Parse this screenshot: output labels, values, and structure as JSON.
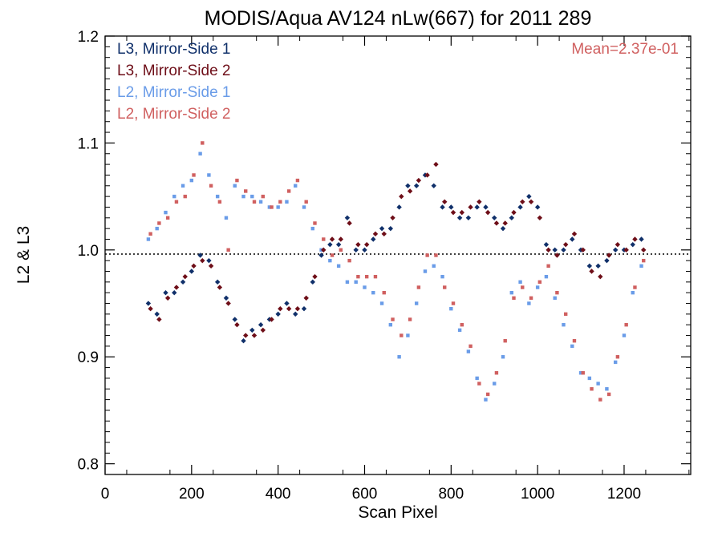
{
  "chart_data": {
    "type": "scatter",
    "title": "MODIS/Aqua AV124 nLw(667) for 2011 289",
    "xlabel": "Scan Pixel",
    "ylabel": "L2 & L3",
    "xlim": [
      0,
      1354
    ],
    "ylim": [
      0.79,
      1.2
    ],
    "x_ticks": [
      0,
      200,
      400,
      600,
      800,
      1000,
      1200
    ],
    "x_tick_labels": [
      "0",
      "200",
      "400",
      "600",
      "800",
      "1000",
      "1200"
    ],
    "y_ticks": [
      0.8,
      0.9,
      1.0,
      1.1,
      1.2
    ],
    "y_tick_labels": [
      "0.8",
      "0.9",
      "1.0",
      "1.1",
      "1.2"
    ],
    "reference_line": 1.0,
    "annotation": {
      "text": "Mean=2.37e-01",
      "color": "#d06060",
      "placement": "top-right"
    },
    "legend_placement": "top-left",
    "series": [
      {
        "name": "L3, Mirror-Side 1",
        "color": "#10306a",
        "marker": "diamond",
        "points": [
          [
            100,
            0.95
          ],
          [
            120,
            0.94
          ],
          [
            140,
            0.96
          ],
          [
            160,
            0.96
          ],
          [
            180,
            0.97
          ],
          [
            200,
            0.98
          ],
          [
            220,
            0.995
          ],
          [
            240,
            0.99
          ],
          [
            260,
            0.97
          ],
          [
            280,
            0.955
          ],
          [
            300,
            0.935
          ],
          [
            320,
            0.915
          ],
          [
            340,
            0.925
          ],
          [
            360,
            0.93
          ],
          [
            380,
            0.935
          ],
          [
            400,
            0.94
          ],
          [
            420,
            0.95
          ],
          [
            440,
            0.94
          ],
          [
            460,
            0.945
          ],
          [
            480,
            0.97
          ],
          [
            500,
            0.995
          ],
          [
            520,
            1.005
          ],
          [
            540,
            1.005
          ],
          [
            560,
            1.03
          ],
          [
            580,
            1.0
          ],
          [
            600,
            1.0
          ],
          [
            620,
            1.01
          ],
          [
            640,
            1.02
          ],
          [
            660,
            1.02
          ],
          [
            680,
            1.04
          ],
          [
            700,
            1.06
          ],
          [
            720,
            1.06
          ],
          [
            740,
            1.07
          ],
          [
            760,
            1.06
          ],
          [
            780,
            1.04
          ],
          [
            800,
            1.04
          ],
          [
            820,
            1.03
          ],
          [
            840,
            1.03
          ],
          [
            860,
            1.04
          ],
          [
            880,
            1.04
          ],
          [
            900,
            1.03
          ],
          [
            920,
            1.02
          ],
          [
            940,
            1.03
          ],
          [
            960,
            1.04
          ],
          [
            980,
            1.05
          ],
          [
            1000,
            1.04
          ],
          [
            1020,
            1.005
          ],
          [
            1040,
            1.0
          ],
          [
            1060,
            1.0
          ],
          [
            1080,
            1.01
          ],
          [
            1100,
            1.0
          ],
          [
            1120,
            0.985
          ],
          [
            1140,
            0.985
          ],
          [
            1160,
            0.99
          ],
          [
            1180,
            1.0
          ],
          [
            1200,
            1.0
          ],
          [
            1220,
            1.005
          ],
          [
            1240,
            1.01
          ]
        ]
      },
      {
        "name": "L3, Mirror-Side 2",
        "color": "#6e0e18",
        "marker": "diamond",
        "points": [
          [
            105,
            0.945
          ],
          [
            125,
            0.935
          ],
          [
            145,
            0.955
          ],
          [
            165,
            0.965
          ],
          [
            185,
            0.975
          ],
          [
            205,
            0.985
          ],
          [
            225,
            0.99
          ],
          [
            245,
            0.985
          ],
          [
            265,
            0.965
          ],
          [
            285,
            0.95
          ],
          [
            305,
            0.93
          ],
          [
            325,
            0.92
          ],
          [
            345,
            0.92
          ],
          [
            365,
            0.925
          ],
          [
            385,
            0.935
          ],
          [
            405,
            0.945
          ],
          [
            425,
            0.945
          ],
          [
            445,
            0.945
          ],
          [
            465,
            0.955
          ],
          [
            485,
            0.975
          ],
          [
            505,
            1.0
          ],
          [
            525,
            1.01
          ],
          [
            545,
            1.01
          ],
          [
            565,
            1.025
          ],
          [
            585,
            1.005
          ],
          [
            605,
            1.005
          ],
          [
            625,
            1.015
          ],
          [
            645,
            1.015
          ],
          [
            665,
            1.03
          ],
          [
            685,
            1.05
          ],
          [
            705,
            1.055
          ],
          [
            725,
            1.065
          ],
          [
            745,
            1.07
          ],
          [
            765,
            1.08
          ],
          [
            785,
            1.045
          ],
          [
            805,
            1.035
          ],
          [
            825,
            1.035
          ],
          [
            845,
            1.04
          ],
          [
            865,
            1.045
          ],
          [
            885,
            1.035
          ],
          [
            905,
            1.025
          ],
          [
            925,
            1.025
          ],
          [
            945,
            1.035
          ],
          [
            965,
            1.045
          ],
          [
            985,
            1.045
          ],
          [
            1005,
            1.03
          ],
          [
            1025,
            1.0
          ],
          [
            1045,
            0.995
          ],
          [
            1065,
            1.005
          ],
          [
            1085,
            1.015
          ],
          [
            1105,
            1.0
          ],
          [
            1125,
            0.98
          ],
          [
            1145,
            0.975
          ],
          [
            1165,
            0.995
          ],
          [
            1185,
            1.005
          ],
          [
            1205,
            1.0
          ],
          [
            1225,
            1.01
          ],
          [
            1245,
            1.0
          ]
        ]
      },
      {
        "name": "L2, Mirror-Side 1",
        "color": "#6a9ce8",
        "marker": "square",
        "points": [
          [
            100,
            1.01
          ],
          [
            120,
            1.02
          ],
          [
            140,
            1.035
          ],
          [
            160,
            1.05
          ],
          [
            180,
            1.06
          ],
          [
            200,
            1.065
          ],
          [
            220,
            1.09
          ],
          [
            240,
            1.07
          ],
          [
            260,
            1.05
          ],
          [
            280,
            1.03
          ],
          [
            300,
            1.06
          ],
          [
            320,
            1.05
          ],
          [
            340,
            1.05
          ],
          [
            360,
            1.045
          ],
          [
            380,
            1.04
          ],
          [
            400,
            1.04
          ],
          [
            420,
            1.045
          ],
          [
            440,
            1.06
          ],
          [
            460,
            1.04
          ],
          [
            480,
            1.02
          ],
          [
            500,
            1.0
          ],
          [
            520,
            0.99
          ],
          [
            540,
            0.985
          ],
          [
            560,
            0.97
          ],
          [
            580,
            0.97
          ],
          [
            600,
            0.965
          ],
          [
            620,
            0.96
          ],
          [
            640,
            0.95
          ],
          [
            660,
            0.93
          ],
          [
            680,
            0.9
          ],
          [
            700,
            0.92
          ],
          [
            720,
            0.95
          ],
          [
            740,
            0.98
          ],
          [
            760,
            0.985
          ],
          [
            780,
            0.975
          ],
          [
            800,
            0.945
          ],
          [
            820,
            0.925
          ],
          [
            840,
            0.905
          ],
          [
            860,
            0.88
          ],
          [
            880,
            0.86
          ],
          [
            900,
            0.875
          ],
          [
            920,
            0.9
          ],
          [
            940,
            0.96
          ],
          [
            960,
            0.97
          ],
          [
            980,
            0.95
          ],
          [
            1000,
            0.965
          ],
          [
            1020,
            0.975
          ],
          [
            1040,
            0.955
          ],
          [
            1060,
            0.93
          ],
          [
            1080,
            0.91
          ],
          [
            1100,
            0.885
          ],
          [
            1120,
            0.88
          ],
          [
            1140,
            0.875
          ],
          [
            1160,
            0.87
          ],
          [
            1180,
            0.895
          ],
          [
            1200,
            0.92
          ],
          [
            1220,
            0.96
          ],
          [
            1240,
            0.985
          ]
        ]
      },
      {
        "name": "L2, Mirror-Side 2",
        "color": "#d06060",
        "marker": "square",
        "points": [
          [
            105,
            1.015
          ],
          [
            125,
            1.025
          ],
          [
            145,
            1.03
          ],
          [
            165,
            1.045
          ],
          [
            185,
            1.05
          ],
          [
            205,
            1.07
          ],
          [
            225,
            1.1
          ],
          [
            245,
            1.06
          ],
          [
            265,
            1.045
          ],
          [
            285,
            1.0
          ],
          [
            305,
            1.065
          ],
          [
            325,
            1.055
          ],
          [
            345,
            1.045
          ],
          [
            365,
            1.05
          ],
          [
            385,
            1.04
          ],
          [
            405,
            1.045
          ],
          [
            425,
            1.055
          ],
          [
            445,
            1.065
          ],
          [
            465,
            1.045
          ],
          [
            485,
            1.025
          ],
          [
            505,
            1.01
          ],
          [
            525,
            0.995
          ],
          [
            545,
            1.0
          ],
          [
            565,
            0.99
          ],
          [
            585,
            0.975
          ],
          [
            605,
            0.975
          ],
          [
            625,
            0.975
          ],
          [
            645,
            0.96
          ],
          [
            665,
            0.935
          ],
          [
            685,
            0.92
          ],
          [
            705,
            0.935
          ],
          [
            725,
            0.965
          ],
          [
            745,
            0.995
          ],
          [
            765,
            0.995
          ],
          [
            785,
            0.965
          ],
          [
            805,
            0.95
          ],
          [
            825,
            0.93
          ],
          [
            845,
            0.91
          ],
          [
            865,
            0.875
          ],
          [
            885,
            0.865
          ],
          [
            905,
            0.885
          ],
          [
            925,
            0.915
          ],
          [
            945,
            0.955
          ],
          [
            965,
            0.965
          ],
          [
            985,
            0.955
          ],
          [
            1005,
            0.97
          ],
          [
            1025,
            0.985
          ],
          [
            1045,
            0.96
          ],
          [
            1065,
            0.94
          ],
          [
            1085,
            0.915
          ],
          [
            1105,
            0.885
          ],
          [
            1125,
            0.87
          ],
          [
            1145,
            0.86
          ],
          [
            1165,
            0.865
          ],
          [
            1185,
            0.9
          ],
          [
            1205,
            0.93
          ],
          [
            1225,
            0.965
          ],
          [
            1245,
            0.99
          ]
        ]
      }
    ]
  }
}
